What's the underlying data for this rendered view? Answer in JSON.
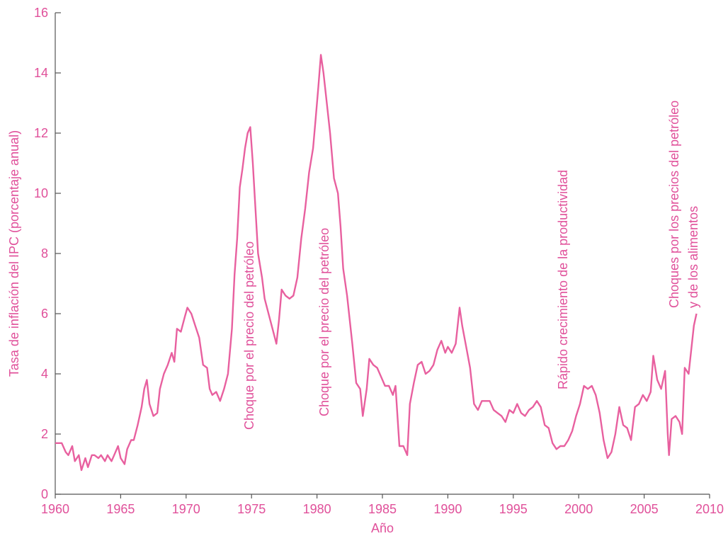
{
  "chart_data": {
    "type": "line",
    "x_label": "Año",
    "y_label": "Tasa de inflación del IPC (porcentaje anual)",
    "xlim": [
      1960,
      2010
    ],
    "xticks": [
      1960,
      1965,
      1970,
      1975,
      1980,
      1985,
      1990,
      1995,
      2000,
      2005,
      2010
    ],
    "ylim": [
      0,
      16
    ],
    "yticks": [
      0,
      2,
      4,
      6,
      8,
      10,
      12,
      14,
      16
    ],
    "annotations": [
      [
        "Choque por el precio del petróleo"
      ],
      [
        "Choque por el precio del petróleo"
      ],
      [
        "Rápido crecimiento de la productividad"
      ],
      [
        "Choques por los precios del petróleo",
        "y de los alimentos"
      ]
    ],
    "x": [
      1960.0,
      1960.5,
      1960.8,
      1961.0,
      1961.3,
      1961.5,
      1961.8,
      1962.0,
      1962.3,
      1962.5,
      1962.8,
      1963.0,
      1963.3,
      1963.5,
      1963.8,
      1964.0,
      1964.3,
      1964.5,
      1964.8,
      1965.0,
      1965.3,
      1965.5,
      1965.8,
      1966.0,
      1966.3,
      1966.6,
      1966.8,
      1967.0,
      1967.2,
      1967.5,
      1967.8,
      1968.0,
      1968.3,
      1968.6,
      1968.9,
      1969.1,
      1969.3,
      1969.6,
      1969.9,
      1970.1,
      1970.4,
      1970.7,
      1971.0,
      1971.3,
      1971.6,
      1971.8,
      1972.0,
      1972.3,
      1972.6,
      1972.9,
      1973.2,
      1973.5,
      1973.7,
      1973.9,
      1974.1,
      1974.3,
      1974.5,
      1974.7,
      1974.9,
      1975.1,
      1975.3,
      1975.5,
      1975.8,
      1976.0,
      1976.3,
      1976.6,
      1976.9,
      1977.1,
      1977.3,
      1977.6,
      1977.9,
      1978.2,
      1978.5,
      1978.8,
      1979.1,
      1979.4,
      1979.7,
      1979.9,
      1980.1,
      1980.3,
      1980.5,
      1980.8,
      1981.0,
      1981.3,
      1981.6,
      1981.8,
      1982.0,
      1982.3,
      1982.5,
      1982.7,
      1983.0,
      1983.3,
      1983.5,
      1983.8,
      1984.0,
      1984.3,
      1984.6,
      1984.9,
      1985.2,
      1985.5,
      1985.8,
      1986.0,
      1986.3,
      1986.6,
      1986.9,
      1987.1,
      1987.4,
      1987.7,
      1988.0,
      1988.3,
      1988.6,
      1988.9,
      1989.2,
      1989.5,
      1989.8,
      1990.0,
      1990.3,
      1990.6,
      1990.9,
      1991.1,
      1991.4,
      1991.7,
      1992.0,
      1992.3,
      1992.6,
      1992.9,
      1993.2,
      1993.5,
      1993.8,
      1994.1,
      1994.4,
      1994.7,
      1995.0,
      1995.3,
      1995.6,
      1995.9,
      1996.2,
      1996.5,
      1996.8,
      1997.1,
      1997.4,
      1997.7,
      1998.0,
      1998.3,
      1998.6,
      1998.9,
      1999.2,
      1999.5,
      1999.8,
      2000.1,
      2000.4,
      2000.7,
      2001.0,
      2001.3,
      2001.6,
      2001.9,
      2002.2,
      2002.5,
      2002.8,
      2003.1,
      2003.4,
      2003.7,
      2004.0,
      2004.3,
      2004.6,
      2004.9,
      2005.2,
      2005.5,
      2005.7,
      2006.0,
      2006.3,
      2006.6,
      2006.8,
      2006.9,
      2007.1,
      2007.4,
      2007.7,
      2007.9,
      2008.1,
      2008.4,
      2008.6,
      2008.8,
      2009.0
    ],
    "series": [
      {
        "color": "#e8609f",
        "values": [
          1.7,
          1.7,
          1.4,
          1.3,
          1.6,
          1.1,
          1.3,
          0.8,
          1.2,
          0.9,
          1.3,
          1.3,
          1.2,
          1.3,
          1.1,
          1.3,
          1.1,
          1.3,
          1.6,
          1.2,
          1.0,
          1.5,
          1.8,
          1.8,
          2.3,
          2.9,
          3.5,
          3.8,
          3.0,
          2.6,
          2.7,
          3.5,
          4.0,
          4.3,
          4.7,
          4.4,
          5.5,
          5.4,
          5.9,
          6.2,
          6.0,
          5.6,
          5.2,
          4.3,
          4.2,
          3.5,
          3.3,
          3.4,
          3.1,
          3.5,
          4.0,
          5.5,
          7.3,
          8.5,
          10.2,
          10.8,
          11.5,
          12.0,
          12.2,
          11.0,
          9.5,
          8.0,
          7.2,
          6.5,
          6.0,
          5.5,
          5.0,
          5.8,
          6.8,
          6.6,
          6.5,
          6.6,
          7.2,
          8.5,
          9.5,
          10.7,
          11.5,
          12.5,
          13.5,
          14.6,
          14.0,
          12.8,
          12.0,
          10.5,
          10.0,
          8.9,
          7.5,
          6.6,
          5.8,
          5.0,
          3.7,
          3.5,
          2.6,
          3.5,
          4.5,
          4.3,
          4.2,
          3.9,
          3.6,
          3.6,
          3.3,
          3.6,
          1.6,
          1.6,
          1.3,
          3.0,
          3.7,
          4.3,
          4.4,
          4.0,
          4.1,
          4.3,
          4.8,
          5.1,
          4.7,
          4.9,
          4.7,
          5.0,
          6.2,
          5.6,
          4.9,
          4.2,
          3.0,
          2.8,
          3.1,
          3.1,
          3.1,
          2.8,
          2.7,
          2.6,
          2.4,
          2.8,
          2.7,
          3.0,
          2.7,
          2.6,
          2.8,
          2.9,
          3.1,
          2.9,
          2.3,
          2.2,
          1.7,
          1.5,
          1.6,
          1.6,
          1.8,
          2.1,
          2.6,
          3.0,
          3.6,
          3.5,
          3.6,
          3.3,
          2.7,
          1.8,
          1.2,
          1.4,
          2.0,
          2.9,
          2.3,
          2.2,
          1.8,
          2.9,
          3.0,
          3.3,
          3.1,
          3.4,
          4.6,
          3.8,
          3.5,
          4.1,
          2.0,
          1.3,
          2.5,
          2.6,
          2.4,
          2.0,
          4.2,
          4.0,
          4.8,
          5.6,
          6.0
        ]
      }
    ]
  }
}
